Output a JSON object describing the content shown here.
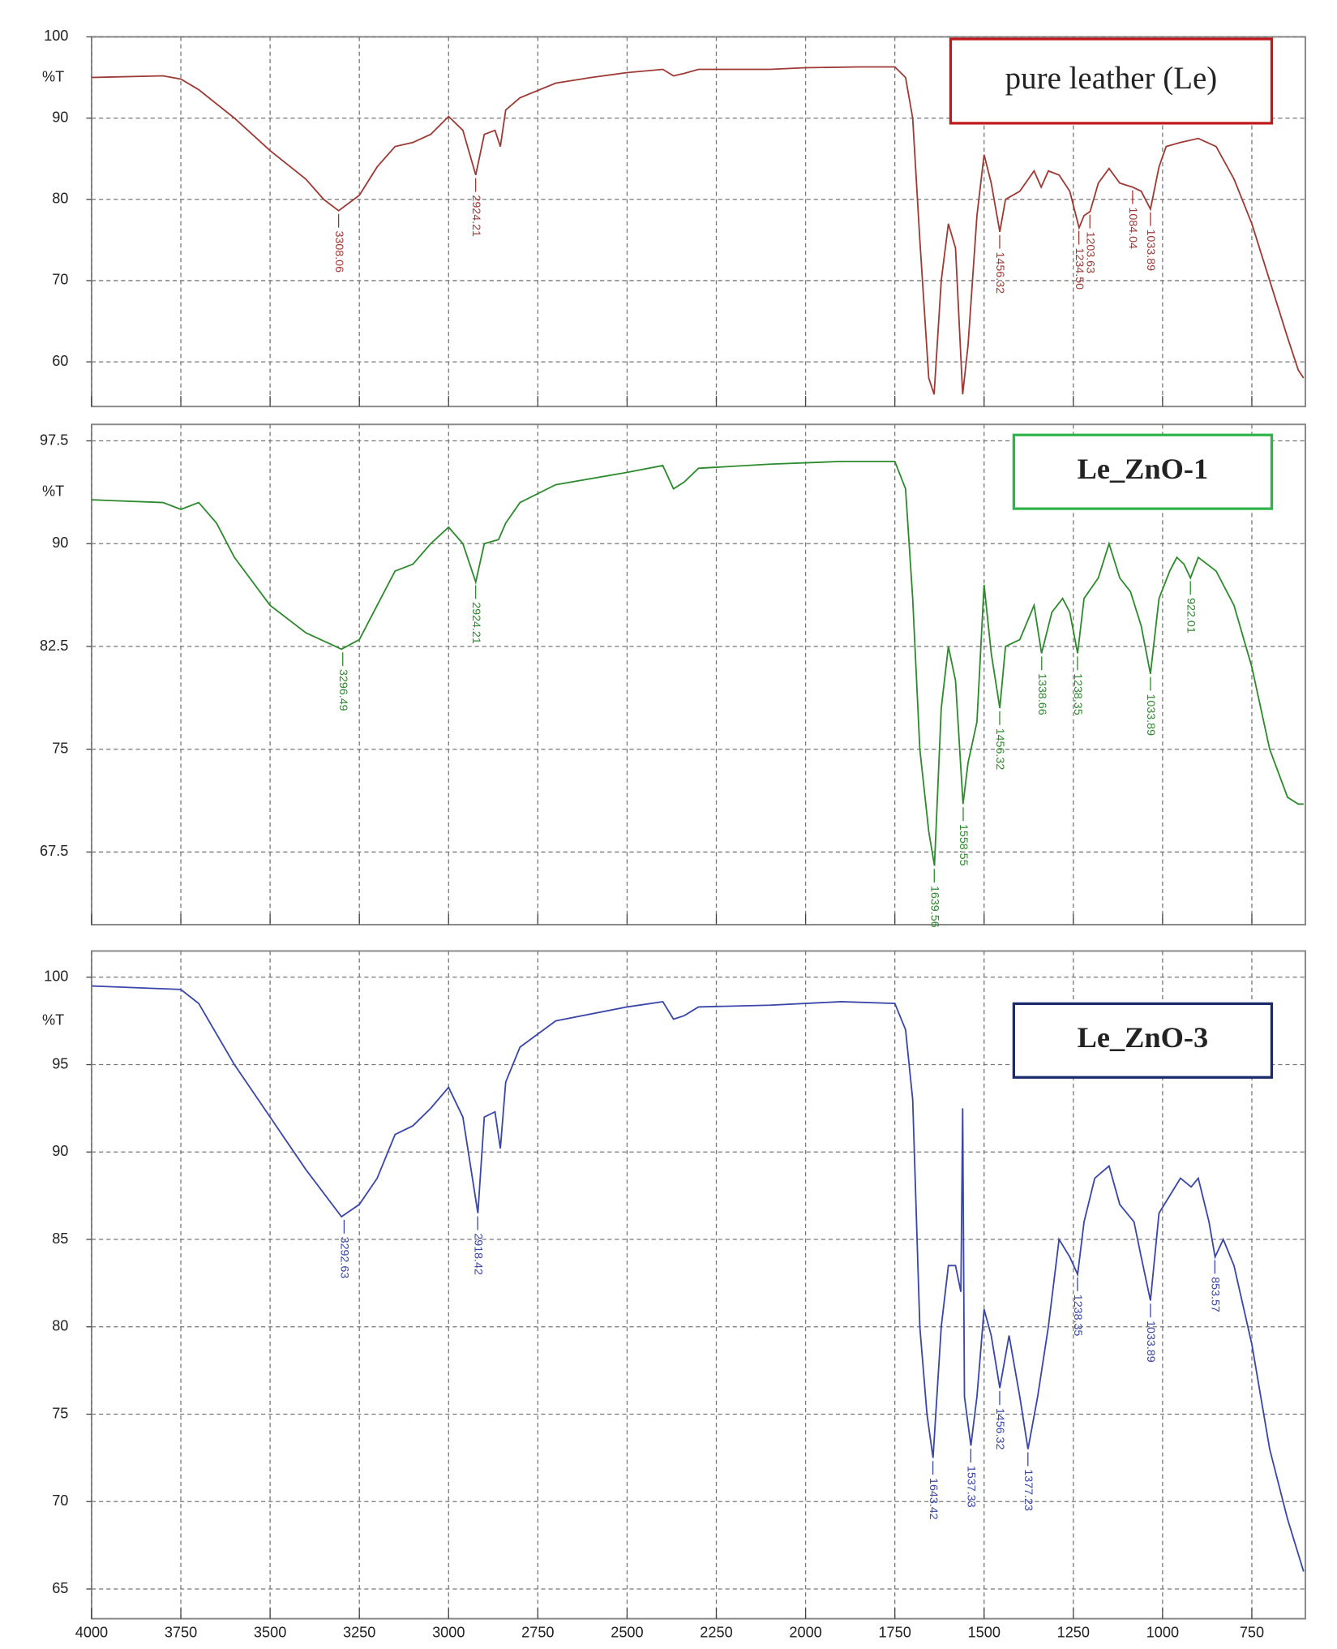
{
  "chart_data": [
    {
      "type": "line",
      "ylabel": "%T",
      "xlim": [
        4000,
        600
      ],
      "ylim": [
        54.5,
        100
      ],
      "yticks": [
        60,
        70,
        80,
        90,
        100
      ],
      "xticks": [
        4000,
        3750,
        3500,
        3250,
        3000,
        2750,
        2500,
        2250,
        2000,
        1750,
        1500,
        1250,
        1000,
        750
      ],
      "xtick_labels": false,
      "grid": true,
      "legend": "upper right",
      "legend_border": "#c0181c",
      "x": [
        4000,
        3800,
        3750,
        3700,
        3600,
        3500,
        3400,
        3350,
        3308,
        3250,
        3200,
        3150,
        3100,
        3050,
        3000,
        2960,
        2924,
        2900,
        2870,
        2855,
        2840,
        2800,
        2700,
        2600,
        2500,
        2400,
        2370,
        2340,
        2300,
        2100,
        2000,
        1850,
        1750,
        1720,
        1700,
        1680,
        1655,
        1640,
        1620,
        1600,
        1580,
        1560,
        1545,
        1520,
        1500,
        1480,
        1456,
        1440,
        1400,
        1360,
        1340,
        1320,
        1290,
        1260,
        1234,
        1220,
        1203,
        1180,
        1150,
        1120,
        1084,
        1060,
        1034,
        1010,
        990,
        950,
        900,
        850,
        800,
        750,
        700,
        650,
        620,
        605
      ],
      "series": [
        {
          "name": "pure leather (Le)",
          "color": "#9e3a36",
          "values": [
            95,
            95.2,
            94.8,
            93.5,
            90,
            86,
            82.5,
            80,
            78.6,
            80.5,
            84,
            86.5,
            87,
            88,
            90.2,
            88.5,
            83,
            88,
            88.5,
            86.5,
            91,
            92.5,
            94.3,
            95,
            95.6,
            96,
            95.2,
            95.5,
            96,
            96,
            96.2,
            96.3,
            96.3,
            95,
            90,
            75,
            58,
            56,
            70,
            77,
            74,
            56,
            62,
            78,
            85.5,
            82,
            76,
            80,
            81,
            83.5,
            81.5,
            83.5,
            83,
            81,
            76.5,
            78,
            78.5,
            82,
            83.8,
            82,
            81.5,
            81,
            78.8,
            84,
            86.5,
            87,
            87.5,
            86.5,
            82.5,
            77,
            70,
            63,
            59,
            58
          ]
        }
      ],
      "annotations": [
        {
          "label": "3308.06",
          "x": 3308.06,
          "y": 78.6
        },
        {
          "label": "2924.21",
          "x": 2924.21,
          "y": 83
        },
        {
          "label": "1456.32",
          "x": 1456.32,
          "y": 76
        },
        {
          "label": "1234.50",
          "x": 1234.5,
          "y": 76.5
        },
        {
          "label": "1203.63",
          "x": 1203.63,
          "y": 78.5
        },
        {
          "label": "1084.04",
          "x": 1084.04,
          "y": 81.5
        },
        {
          "label": "1033.89",
          "x": 1033.89,
          "y": 78.8
        }
      ]
    },
    {
      "type": "line",
      "ylabel": "%T",
      "xlim": [
        4000,
        600
      ],
      "ylim": [
        62.2,
        98.7
      ],
      "yticks": [
        67.5,
        75,
        82.5,
        90,
        97.5
      ],
      "xticks": [
        4000,
        3750,
        3500,
        3250,
        3000,
        2750,
        2500,
        2250,
        2000,
        1750,
        1500,
        1250,
        1000,
        750
      ],
      "xtick_labels": false,
      "grid": true,
      "legend": "upper right",
      "legend_border": "#2fb34a",
      "x": [
        4000,
        3800,
        3750,
        3700,
        3650,
        3600,
        3500,
        3400,
        3300,
        3250,
        3200,
        3150,
        3100,
        3050,
        3000,
        2960,
        2924,
        2900,
        2860,
        2840,
        2800,
        2700,
        2500,
        2400,
        2370,
        2340,
        2300,
        2100,
        1900,
        1750,
        1720,
        1700,
        1680,
        1655,
        1639,
        1620,
        1600,
        1580,
        1559,
        1545,
        1520,
        1500,
        1480,
        1456,
        1440,
        1400,
        1360,
        1339,
        1310,
        1280,
        1260,
        1238,
        1220,
        1180,
        1150,
        1120,
        1090,
        1060,
        1034,
        1010,
        980,
        960,
        940,
        922,
        900,
        850,
        800,
        750,
        700,
        650,
        620,
        605
      ],
      "series": [
        {
          "name": "Le_ZnO-1",
          "color": "#2e8a2e",
          "values": [
            93.2,
            93,
            92.5,
            93,
            91.5,
            89,
            85.5,
            83.5,
            82.3,
            83,
            85.5,
            88,
            88.5,
            90,
            91.2,
            90,
            87.2,
            90,
            90.3,
            91.5,
            93,
            94.3,
            95.2,
            95.7,
            94,
            94.5,
            95.5,
            95.8,
            96,
            96,
            94,
            86,
            75,
            69,
            66.5,
            78,
            82.5,
            80,
            71,
            74,
            77,
            87,
            82,
            78,
            82.5,
            83,
            85.5,
            82,
            85,
            86,
            85,
            82,
            86,
            87.5,
            90,
            87.5,
            86.5,
            84,
            80.5,
            86,
            88,
            89,
            88.5,
            87.5,
            89,
            88,
            85.5,
            81,
            75,
            71.5,
            71,
            71
          ]
        }
      ],
      "annotations": [
        {
          "label": "3296.49",
          "x": 3296.49,
          "y": 82.3
        },
        {
          "label": "2924.21",
          "x": 2924.21,
          "y": 87.2
        },
        {
          "label": "1639.56",
          "x": 1639.56,
          "y": 66.5
        },
        {
          "label": "1558.55",
          "x": 1558.55,
          "y": 71
        },
        {
          "label": "1456.32",
          "x": 1456.32,
          "y": 78
        },
        {
          "label": "1338.66",
          "x": 1338.66,
          "y": 82
        },
        {
          "label": "1238.35",
          "x": 1238.35,
          "y": 82
        },
        {
          "label": "1033.89",
          "x": 1033.89,
          "y": 80.5
        },
        {
          "label": "922.01",
          "x": 922.01,
          "y": 87.5
        }
      ]
    },
    {
      "type": "line",
      "ylabel": "%T",
      "xlim": [
        4000,
        600
      ],
      "ylim": [
        63.3,
        101.5
      ],
      "yticks": [
        65,
        70,
        75,
        80,
        85,
        90,
        95,
        100
      ],
      "xticks": [
        4000,
        3750,
        3500,
        3250,
        3000,
        2750,
        2500,
        2250,
        2000,
        1750,
        1500,
        1250,
        1000,
        750
      ],
      "xtick_labels": true,
      "grid": true,
      "legend": "upper right",
      "legend_border": "#1a2a6a",
      "x": [
        4000,
        3750,
        3700,
        3600,
        3500,
        3400,
        3300,
        3250,
        3200,
        3150,
        3100,
        3050,
        3000,
        2960,
        2918,
        2900,
        2870,
        2855,
        2840,
        2800,
        2700,
        2500,
        2400,
        2370,
        2340,
        2300,
        2100,
        1900,
        1750,
        1720,
        1700,
        1680,
        1660,
        1643,
        1620,
        1600,
        1580,
        1565,
        1560,
        1555,
        1537,
        1520,
        1500,
        1480,
        1456,
        1430,
        1400,
        1377,
        1350,
        1320,
        1290,
        1260,
        1238,
        1220,
        1190,
        1150,
        1120,
        1080,
        1060,
        1034,
        1010,
        980,
        950,
        920,
        900,
        870,
        853,
        830,
        800,
        750,
        700,
        650,
        620,
        605
      ],
      "series": [
        {
          "name": "Le_ZnO-3",
          "color": "#3a46a8",
          "values": [
            99.5,
            99.3,
            98.5,
            95,
            92,
            89,
            86.3,
            87,
            88.5,
            91,
            91.5,
            92.5,
            93.7,
            92,
            86.5,
            92,
            92.3,
            90.2,
            94,
            96,
            97.5,
            98.3,
            98.6,
            97.6,
            97.8,
            98.3,
            98.4,
            98.6,
            98.5,
            97,
            93,
            80,
            75,
            72.5,
            80,
            83.5,
            83.5,
            82,
            92.5,
            76,
            73.2,
            76,
            81,
            79.5,
            76.5,
            79.5,
            76,
            73,
            76,
            80,
            85,
            84,
            83,
            86,
            88.5,
            89.2,
            87,
            86,
            84,
            81.5,
            86.5,
            87.5,
            88.5,
            88,
            88.5,
            86,
            84,
            85,
            83.5,
            79,
            73,
            69,
            67,
            66
          ]
        }
      ],
      "annotations": [
        {
          "label": "3292.63",
          "x": 3292.63,
          "y": 86.3
        },
        {
          "label": "2918.42",
          "x": 2918.42,
          "y": 86.5
        },
        {
          "label": "1643.42",
          "x": 1643.42,
          "y": 72.5
        },
        {
          "label": "1537.33",
          "x": 1537.33,
          "y": 73.2
        },
        {
          "label": "1456.32",
          "x": 1456.32,
          "y": 76.5
        },
        {
          "label": "1377.23",
          "x": 1377.23,
          "y": 73
        },
        {
          "label": "1238.35",
          "x": 1238.35,
          "y": 83
        },
        {
          "label": "1033.89",
          "x": 1033.89,
          "y": 81.5
        },
        {
          "label": "853.57",
          "x": 853.57,
          "y": 84
        }
      ]
    }
  ]
}
